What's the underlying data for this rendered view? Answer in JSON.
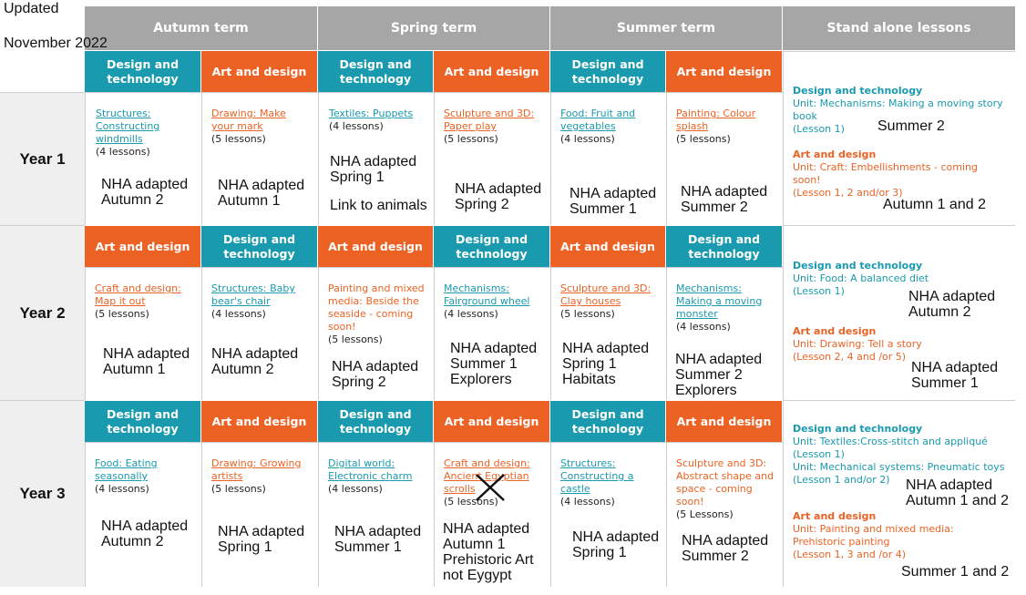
{
  "updated": {
    "line1": "Updated",
    "line2": "November 2022"
  },
  "headers": {
    "autumn": "Autumn term",
    "spring": "Spring term",
    "summer": "Summer term",
    "standalone": "Stand alone lessons"
  },
  "subjects": {
    "dt_l1": "Design and",
    "dt_l2": "technology",
    "ad": "Art and design"
  },
  "years": [
    "Year 1",
    "Year 2",
    "Year 3"
  ],
  "rows": [
    {
      "cells": [
        {
          "unit": [
            "Structures:",
            "Constructing",
            "windmills"
          ],
          "count": "(4 lessons)",
          "note": [
            "NHA adapted",
            "Autumn 2"
          ]
        },
        {
          "unit": [
            "Drawing: Make",
            "your mark"
          ],
          "count": "(5 lessons)",
          "note": [
            "NHA adapted",
            "Autumn 1"
          ]
        },
        {
          "unit": [
            "Textiles: Puppets"
          ],
          "count": "(4 lessons)",
          "note": [
            "NHA adapted",
            "Spring 1",
            "",
            "Link to animals"
          ]
        },
        {
          "unit": [
            "Sculpture and 3D:",
            "Paper play"
          ],
          "count": "(5 lessons)",
          "note": [
            "NHA adapted",
            "Spring 2"
          ]
        },
        {
          "unit": [
            "Food: Fruit and",
            "vegetables"
          ],
          "count": "(4 lessons)",
          "note": [
            "NHA adapted",
            "Summer 1"
          ]
        },
        {
          "unit": [
            "Painting: Colour",
            "splash"
          ],
          "count": "(5 lessons)",
          "note": [
            "NHA adapted",
            "Summer 2"
          ]
        }
      ],
      "standalone": {
        "dt_heading": "Design and technology",
        "dt_unit": "Unit: Mechanisms: Making a moving story book",
        "dt_lesson": "(Lesson 1)",
        "dt_note": "Summer 2",
        "ad_heading": "Art and design",
        "ad_unit": "Unit: Craft: Embellishments - coming soon!",
        "ad_lesson": "(Lesson 1, 2 and/or 3)",
        "ad_note": "Autumn 1 and 2"
      }
    },
    {
      "cells": [
        {
          "unit": [
            "Craft and design:",
            "Map it out"
          ],
          "count": "(5 lessons)",
          "note": [
            "NHA adapted",
            "Autumn 1"
          ]
        },
        {
          "unit": [
            "Structures: Baby",
            "bear's chair"
          ],
          "count": "(4 lessons)",
          "note": [
            "NHA adapted",
            "Autumn 2"
          ]
        },
        {
          "unit": [
            "Painting and mixed",
            "media: Beside the",
            "seaside - coming",
            "soon!"
          ],
          "count": "(5 lessons)",
          "note": [
            "NHA adapted",
            "Spring 2"
          ]
        },
        {
          "unit": [
            "Mechanisms:",
            "Fairground wheel"
          ],
          "count": "(4 lessons)",
          "note": [
            "NHA adapted",
            "Summer 1",
            "Explorers"
          ]
        },
        {
          "unit": [
            "Sculpture and 3D:",
            "Clay houses"
          ],
          "count": "(5 lessons)",
          "note": [
            "NHA adapted",
            "Spring 1",
            "Habitats"
          ]
        },
        {
          "unit": [
            "Mechanisms:",
            "Making a moving",
            "monster"
          ],
          "count": "(4 lessons)",
          "note": [
            "NHA adapted",
            "Summer 2",
            "Explorers"
          ]
        }
      ],
      "standalone": {
        "dt_heading": "Design and technology",
        "dt_unit": "Unit: Food: A balanced diet",
        "dt_lesson": "(Lesson 1)",
        "dt_note1": "NHA adapted",
        "dt_note2": "Autumn 2",
        "ad_heading": "Art and design",
        "ad_unit": "Unit: Drawing: Tell a story",
        "ad_lesson": "(Lesson 2, 4 and /or 5)",
        "ad_note1": "NHA adapted",
        "ad_note2": "Summer 1"
      }
    },
    {
      "cells": [
        {
          "unit": [
            "Food: Eating",
            "seasonally"
          ],
          "count": "(4 lessons)",
          "note": [
            "NHA adapted",
            "Autumn 2"
          ]
        },
        {
          "unit": [
            "Drawing: Growing",
            "artists"
          ],
          "count": "(5 lessons)",
          "note": [
            "NHA adapted",
            "Spring 1"
          ]
        },
        {
          "unit": [
            "Digital world:",
            "Electronic charm"
          ],
          "count": "(4 lessons)",
          "note": [
            "NHA adapted",
            "Summer 1"
          ]
        },
        {
          "unit": [
            "Craft and design:",
            "Ancient Egyptian",
            "scrolls"
          ],
          "count": "(5 lessons)",
          "note": [
            "NHA adapted",
            "Autumn 1",
            "Prehistoric Art",
            "not Eygypt"
          ]
        },
        {
          "unit": [
            "Structures:",
            "Constructing a",
            "castle"
          ],
          "count": "(4 lessons)",
          "note": [
            "NHA adapted",
            "Spring 1"
          ]
        },
        {
          "unit": [
            "Sculpture and 3D:",
            "Abstract shape and",
            "space - coming",
            "soon!"
          ],
          "count": "(5 Lessons)",
          "note": [
            "NHA adapted",
            "Summer 2"
          ]
        }
      ],
      "standalone": {
        "dt_heading": "Design and technology",
        "dt_unit1": "Unit: Textiles:Cross-stitch and appliqué",
        "dt_lesson1": "(Lesson 1)",
        "dt_unit2": "Unit: Mechanical systems: Pneumatic toys",
        "dt_lesson2": "(Lesson 1 and/or 2)",
        "dt_note1": "NHA adapted",
        "dt_note2": "Autumn 1 and 2",
        "ad_heading": "Art and design",
        "ad_unit": "Unit: Painting and mixed media: Prehistoric painting",
        "ad_lesson": "(Lesson 1, 3 and /or 4)",
        "ad_note": "Summer 1 and 2"
      }
    }
  ],
  "colors": {
    "teal": "#1a9aae",
    "orange": "#ec6224",
    "header_grey": "#a6a6a6"
  },
  "mark": "cross-out-icon"
}
